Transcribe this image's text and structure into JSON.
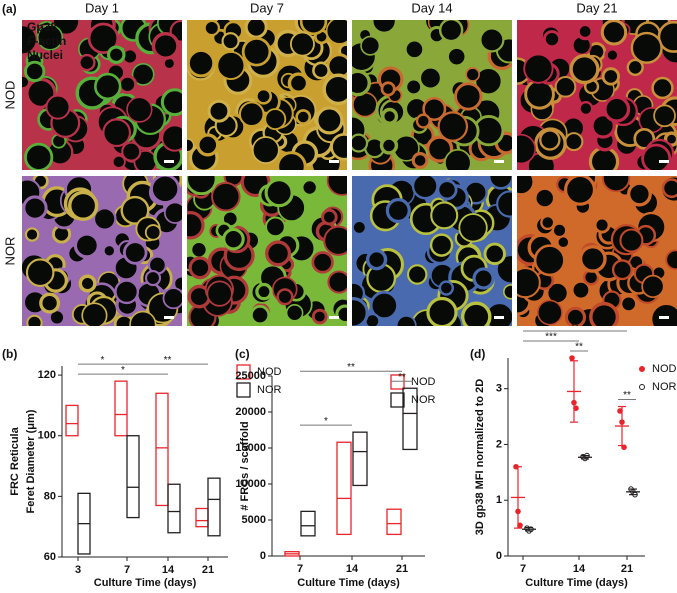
{
  "panel_a": {
    "label": "(a)",
    "columns": [
      "Day 1",
      "Day 7",
      "Day 14",
      "Day 21"
    ],
    "rows": [
      "NOD",
      "NOR"
    ],
    "channels": [
      {
        "name": "Gp38",
        "color": "#3ee03e"
      },
      {
        "name": "F-actin",
        "color": "#ff2b2b"
      },
      {
        "name": "Nuclei",
        "color": "#3b5bff"
      }
    ]
  },
  "chart_data": [
    {
      "type": "floating-bar",
      "panel": "(b)",
      "y_title": [
        "FRC Reticula",
        "Feret Diameter (μm)"
      ],
      "x_title": "Culture Time (days)",
      "categories": [
        "3",
        "7",
        "14",
        "21"
      ],
      "ylim": [
        60,
        123
      ],
      "yticks": [
        60,
        80,
        100,
        120
      ],
      "series": [
        {
          "name": "NOD",
          "color": "#e8252b",
          "min": [
            100,
            100,
            77,
            70
          ],
          "mean": [
            104,
            107,
            96,
            72
          ],
          "max": [
            110,
            118,
            114,
            76
          ]
        },
        {
          "name": "NOR",
          "color": "#231f20",
          "min": [
            61,
            73,
            68,
            67
          ],
          "mean": [
            71,
            83,
            75,
            79
          ],
          "max": [
            81,
            100,
            84,
            86
          ]
        }
      ],
      "annotations": [
        {
          "text": "*",
          "from": "3",
          "to": "14"
        },
        {
          "text": "*",
          "from": "3",
          "to": "7"
        },
        {
          "text": "**",
          "from": "7",
          "to": "21"
        }
      ]
    },
    {
      "type": "floating-bar",
      "panel": "(c)",
      "y_title": "# FRCs / scaffold",
      "x_title": "Culture Time (days)",
      "categories": [
        "7",
        "14",
        "21"
      ],
      "ylim": [
        0,
        25000
      ],
      "yticks": [
        0,
        5000,
        10000,
        15000,
        20000,
        25000
      ],
      "series": [
        {
          "name": "NOD",
          "color": "#e8252b",
          "min": [
            0,
            3000,
            3000
          ],
          "mean": [
            300,
            8000,
            4500
          ],
          "max": [
            600,
            15800,
            6500
          ]
        },
        {
          "name": "NOR",
          "color": "#231f20",
          "min": [
            2800,
            9800,
            14800
          ],
          "mean": [
            4200,
            14500,
            19800
          ],
          "max": [
            6200,
            17200,
            23300
          ]
        }
      ],
      "annotations": [
        {
          "text": "*",
          "from": "7",
          "to": "14"
        },
        {
          "text": "**",
          "from": "21",
          "to": "21"
        },
        {
          "text": "**",
          "from": "7",
          "to": "21"
        }
      ]
    },
    {
      "type": "scatter",
      "panel": "(d)",
      "y_title": "3D gp38 MFI normalized to 2D",
      "x_title": "Culture Time (days)",
      "categories": [
        "7",
        "14",
        "21"
      ],
      "ylim": [
        0,
        3.55
      ],
      "yticks": [
        0,
        1,
        2,
        3
      ],
      "series": [
        {
          "name": "NOD",
          "color": "#e8252b",
          "marker": "filled",
          "points": [
            [
              1.6,
              0.8,
              0.55
            ],
            [
              3.55,
              2.75,
              2.65
            ],
            [
              2.6,
              2.4,
              1.95
            ]
          ],
          "mean": [
            1.05,
            2.95,
            2.33
          ],
          "sd": [
            0.55,
            0.55,
            0.35
          ]
        },
        {
          "name": "NOR",
          "color": "#231f20",
          "marker": "open",
          "points": [
            [
              0.5,
              0.45,
              0.48
            ],
            [
              1.78,
              1.75,
              1.8
            ],
            [
              1.2,
              1.15,
              1.1
            ]
          ],
          "mean": [
            0.48,
            1.77,
            1.15
          ],
          "sd": [
            0.03,
            0.03,
            0.05
          ]
        }
      ],
      "annotations": [
        {
          "text": "**",
          "from": "14",
          "to": "14"
        },
        {
          "text": "**",
          "from": "21",
          "to": "21"
        },
        {
          "text": "***",
          "from": "7",
          "to": "14"
        },
        {
          "text": "**",
          "from": "7",
          "to": "21"
        }
      ]
    }
  ]
}
